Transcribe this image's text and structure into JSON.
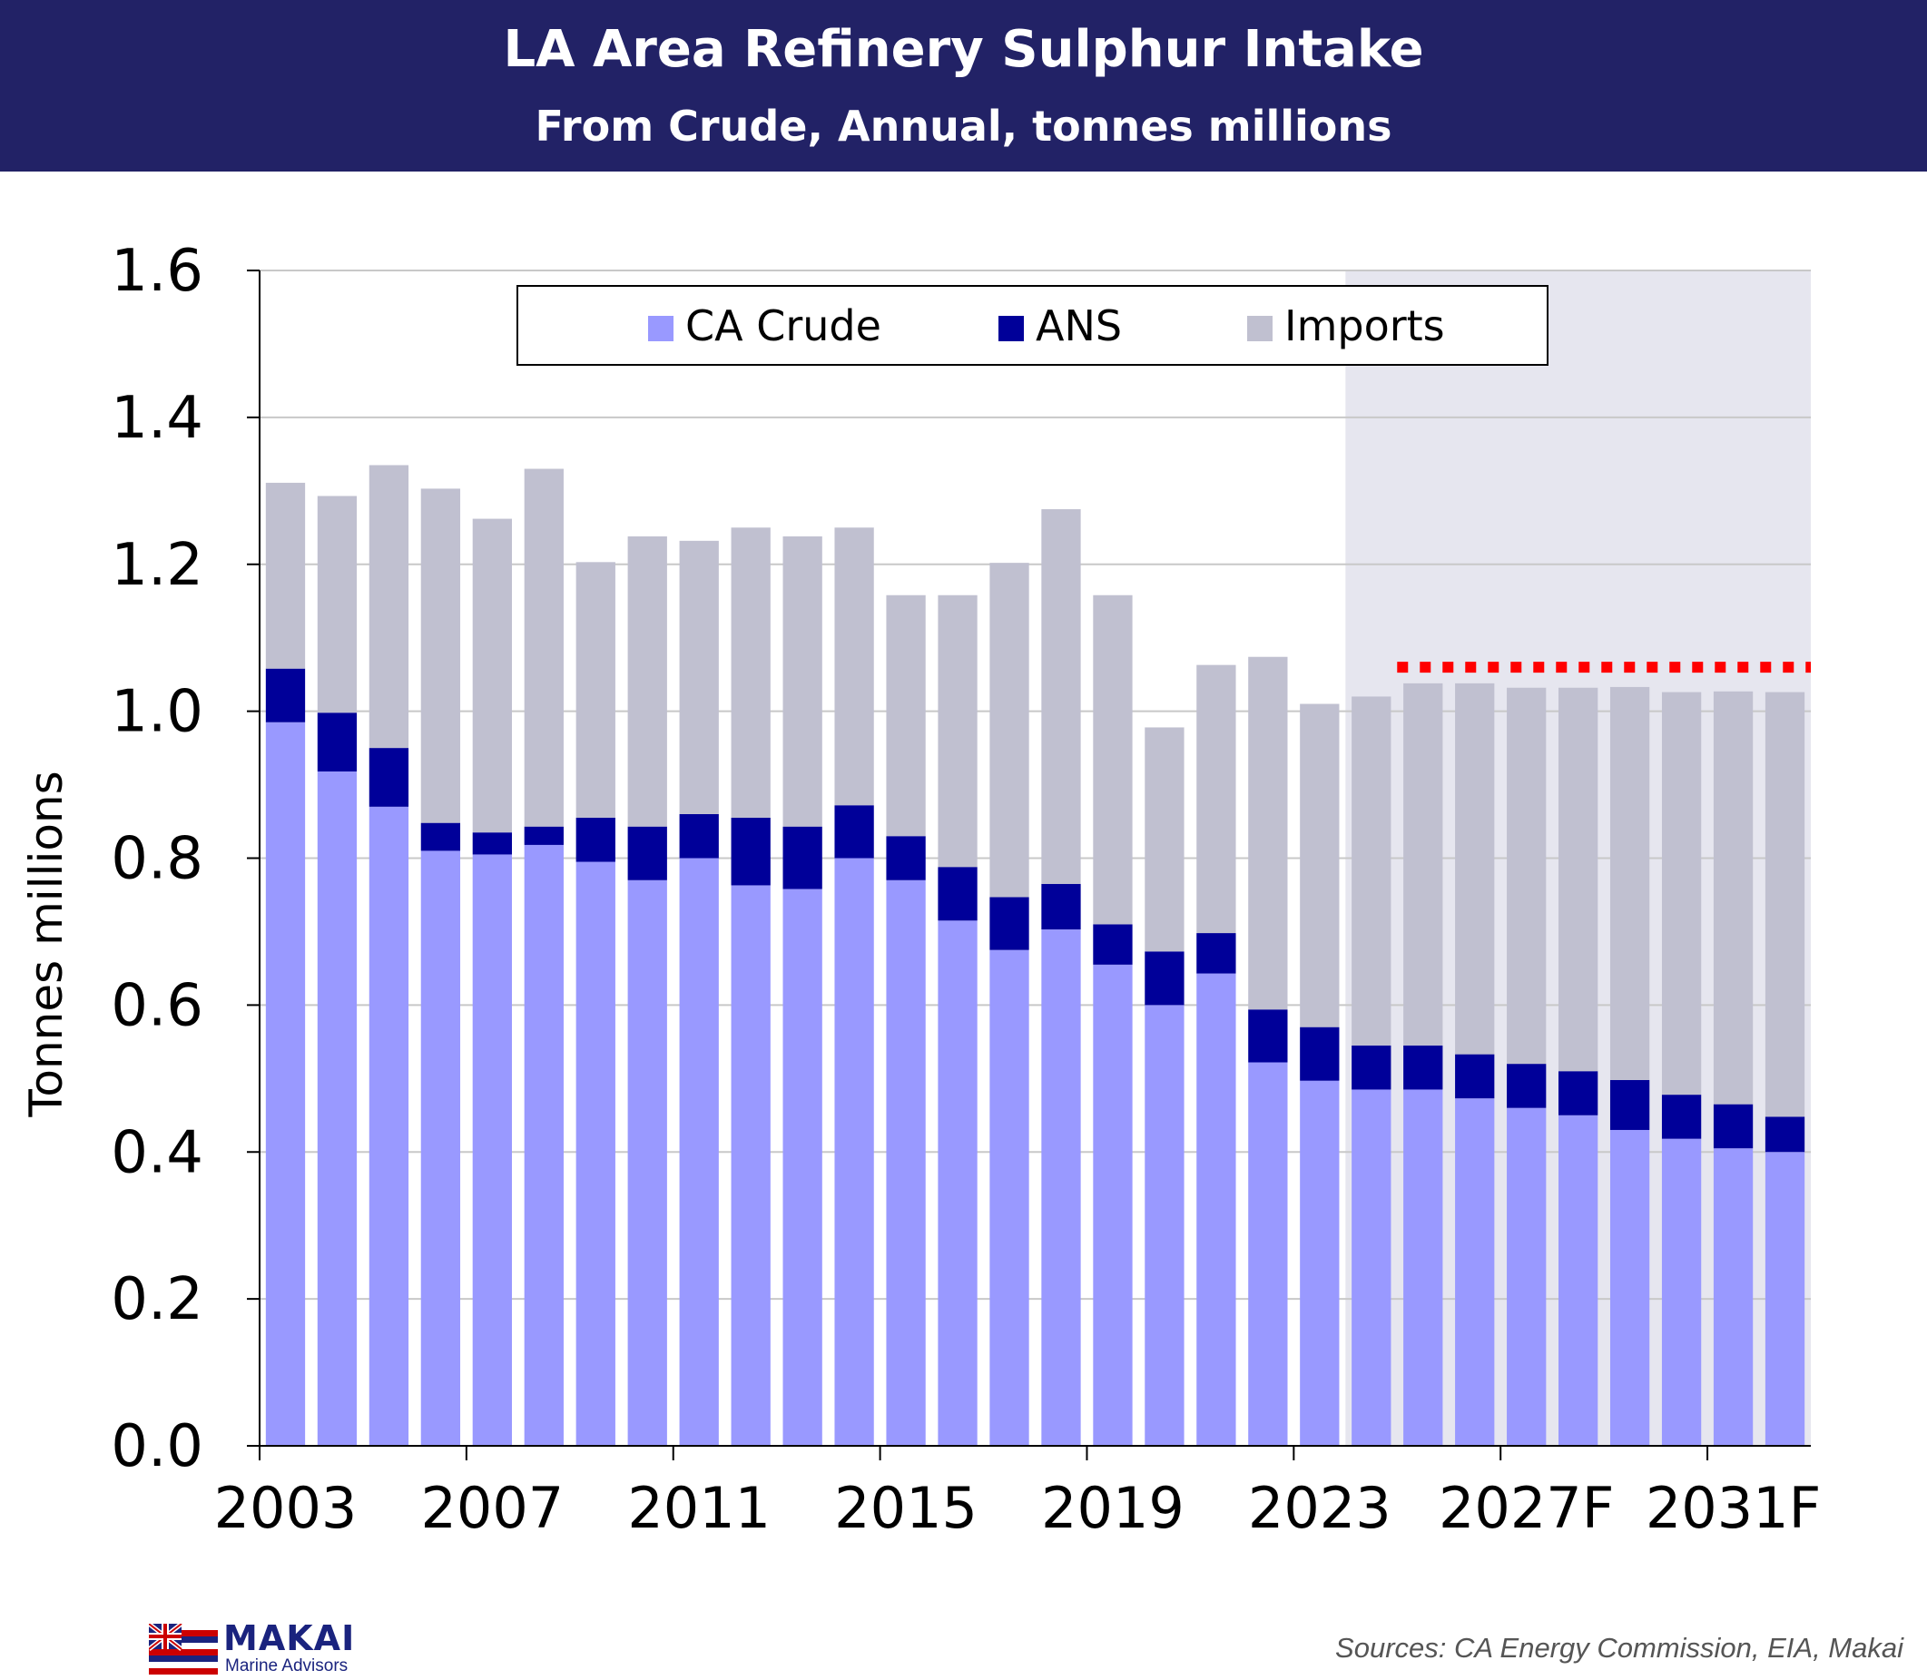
{
  "banner": {
    "title": "LA Area Refinery Sulphur Intake",
    "subtitle": "From Crude, Annual, tonnes millions"
  },
  "chart_data": {
    "type": "bar",
    "stacked": true,
    "title": "LA Area Refinery Sulphur Intake",
    "subtitle": "From Crude, Annual, tonnes millions",
    "ylabel": "Tonnes millions",
    "xlabel": "",
    "ylim": [
      0,
      1.6
    ],
    "yticks": [
      "0.0",
      "0.2",
      "0.4",
      "0.6",
      "0.8",
      "1.0",
      "1.2",
      "1.4",
      "1.6"
    ],
    "grid": true,
    "legend_position": "top",
    "categories": [
      "2003",
      "2004",
      "2005",
      "2006",
      "2007",
      "2008",
      "2009",
      "2010",
      "2011",
      "2012",
      "2013",
      "2014",
      "2015",
      "2016",
      "2017",
      "2018",
      "2019",
      "2020",
      "2021",
      "2022",
      "2023",
      "2024F",
      "2025F",
      "2026F",
      "2027F",
      "2028F",
      "2029F",
      "2030F",
      "2031F",
      "2032F"
    ],
    "tick_labels": [
      "2003",
      "2007",
      "2011",
      "2015",
      "2019",
      "2023",
      "2027F",
      "2031F"
    ],
    "tick_label_categories": [
      "2003",
      "2007",
      "2011",
      "2015",
      "2019",
      "2023",
      "2027F",
      "2031F"
    ],
    "series": [
      {
        "name": "CA Crude",
        "color": "#9999ff",
        "values": [
          0.985,
          0.918,
          0.87,
          0.81,
          0.805,
          0.818,
          0.795,
          0.77,
          0.8,
          0.763,
          0.758,
          0.8,
          0.77,
          0.715,
          0.675,
          0.703,
          0.655,
          0.6,
          0.643,
          0.522,
          0.497,
          0.485,
          0.485,
          0.473,
          0.46,
          0.45,
          0.43,
          0.418,
          0.405,
          0.4
        ]
      },
      {
        "name": "ANS",
        "color": "#000099",
        "values": [
          0.073,
          0.08,
          0.08,
          0.038,
          0.03,
          0.025,
          0.06,
          0.073,
          0.06,
          0.092,
          0.085,
          0.072,
          0.06,
          0.073,
          0.072,
          0.062,
          0.055,
          0.073,
          0.055,
          0.072,
          0.073,
          0.06,
          0.06,
          0.06,
          0.06,
          0.06,
          0.068,
          0.06,
          0.06,
          0.048
        ]
      },
      {
        "name": "Imports",
        "color": "#c0c0d0",
        "values": [
          0.253,
          0.295,
          0.385,
          0.455,
          0.427,
          0.487,
          0.348,
          0.395,
          0.372,
          0.395,
          0.395,
          0.378,
          0.328,
          0.37,
          0.455,
          0.51,
          0.448,
          0.305,
          0.365,
          0.48,
          0.44,
          0.475,
          0.493,
          0.505,
          0.512,
          0.522,
          0.535,
          0.548,
          0.562,
          0.578
        ]
      }
    ],
    "forecast_shading_start": "2024F",
    "reference_line": {
      "value": 1.06,
      "from": "2025F",
      "to": "2032F",
      "color": "#ff0000",
      "style": "dotted"
    }
  },
  "logo": {
    "name": "MAKAI",
    "subtitle": "Marine Advisors"
  },
  "source_note": "Sources: CA Energy Commission, EIA, Makai"
}
